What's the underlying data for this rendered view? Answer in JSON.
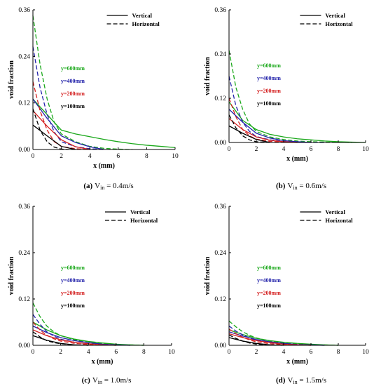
{
  "chart_data": [
    {
      "type": "line",
      "caption_letter": "(a)",
      "caption_text": "V",
      "caption_sub": "in",
      "caption_value": " = 0.4m/s",
      "xlabel": "x (mm)",
      "ylabel": "void fraction",
      "xlim": [
        0,
        10
      ],
      "ylim": [
        0,
        0.36
      ],
      "xticks": [
        "0",
        "2",
        "4",
        "6",
        "8",
        "10"
      ],
      "yticks": [
        "0.00",
        "0.12",
        "0.24",
        "0.36"
      ],
      "legend": [
        "Vertical",
        "Horizontal"
      ],
      "level_labels": [
        {
          "text": "y=600mm",
          "color": "#1aa81a"
        },
        {
          "text": "y=400mm",
          "color": "#2222aa"
        },
        {
          "text": "y=200mm",
          "color": "#d42020"
        },
        {
          "text": "y=100mm",
          "color": "#000000"
        }
      ],
      "series": [
        {
          "style": "solid",
          "color": "#1aa81a",
          "x": [
            0,
            1,
            2,
            3,
            4,
            5,
            6,
            7,
            8,
            9,
            10
          ],
          "y": [
            0.13,
            0.09,
            0.05,
            0.04,
            0.033,
            0.026,
            0.02,
            0.015,
            0.011,
            0.008,
            0.005
          ]
        },
        {
          "style": "dashed",
          "color": "#1aa81a",
          "x": [
            0,
            0.5,
            1,
            1.5,
            2,
            3,
            4,
            5,
            6,
            7
          ],
          "y": [
            0.345,
            0.22,
            0.13,
            0.07,
            0.04,
            0.02,
            0.008,
            0.003,
            0.001,
            0
          ]
        },
        {
          "style": "solid",
          "color": "#2222aa",
          "x": [
            0,
            1,
            2,
            3,
            4,
            5
          ],
          "y": [
            0.13,
            0.08,
            0.035,
            0.018,
            0.007,
            0
          ]
        },
        {
          "style": "dashed",
          "color": "#2222aa",
          "x": [
            0,
            0.5,
            1,
            1.5,
            2,
            3,
            4,
            5
          ],
          "y": [
            0.265,
            0.16,
            0.09,
            0.045,
            0.02,
            0.007,
            0.002,
            0
          ]
        },
        {
          "style": "solid",
          "color": "#d42020",
          "x": [
            0,
            1,
            2,
            3,
            4
          ],
          "y": [
            0.1,
            0.06,
            0.025,
            0.007,
            0
          ]
        },
        {
          "style": "dashed",
          "color": "#d42020",
          "x": [
            0,
            0.5,
            1,
            1.5,
            2,
            3,
            4
          ],
          "y": [
            0.175,
            0.1,
            0.05,
            0.02,
            0.008,
            0.002,
            0
          ]
        },
        {
          "style": "solid",
          "color": "#000000",
          "x": [
            0,
            1,
            2,
            3
          ],
          "y": [
            0.063,
            0.035,
            0.008,
            0
          ]
        },
        {
          "style": "dashed",
          "color": "#000000",
          "x": [
            0,
            0.5,
            1,
            1.5,
            2,
            2.5
          ],
          "y": [
            0.105,
            0.05,
            0.02,
            0.006,
            0.001,
            0
          ]
        }
      ]
    },
    {
      "type": "line",
      "caption_letter": "(b)",
      "caption_text": "V",
      "caption_sub": "in",
      "caption_value": " = 0.6m/s",
      "xlabel": "x (mm)",
      "ylabel": "void fraction",
      "xlim": [
        0,
        10
      ],
      "ylim": [
        0,
        0.36
      ],
      "xticks": [
        "0",
        "2",
        "4",
        "6",
        "8",
        "10"
      ],
      "yticks": [
        "0.00",
        "0.12",
        "0.24",
        "0.36"
      ],
      "legend": [
        "Vertical",
        "Horizontal"
      ],
      "level_labels": [
        {
          "text": "y=600mm",
          "color": "#1aa81a"
        },
        {
          "text": "y=400mm",
          "color": "#2222aa"
        },
        {
          "text": "y=200mm",
          "color": "#d42020"
        },
        {
          "text": "y=100mm",
          "color": "#000000"
        }
      ],
      "series": [
        {
          "style": "solid",
          "color": "#1aa81a",
          "x": [
            0,
            1,
            2,
            3,
            4,
            5,
            6,
            7,
            8,
            9,
            10
          ],
          "y": [
            0.11,
            0.06,
            0.035,
            0.022,
            0.015,
            0.01,
            0.007,
            0.004,
            0.002,
            0.001,
            0
          ]
        },
        {
          "style": "dashed",
          "color": "#1aa81a",
          "x": [
            0,
            0.5,
            1,
            1.5,
            2,
            3,
            4,
            5,
            6,
            7,
            8,
            9
          ],
          "y": [
            0.25,
            0.15,
            0.09,
            0.05,
            0.03,
            0.015,
            0.008,
            0.004,
            0.002,
            0.001,
            0.0005,
            0
          ]
        },
        {
          "style": "solid",
          "color": "#2222aa",
          "x": [
            0,
            1,
            2,
            3,
            4,
            5,
            6
          ],
          "y": [
            0.09,
            0.055,
            0.025,
            0.012,
            0.005,
            0.002,
            0
          ]
        },
        {
          "style": "dashed",
          "color": "#2222aa",
          "x": [
            0,
            0.5,
            1,
            1.5,
            2,
            3,
            4,
            5,
            6,
            7
          ],
          "y": [
            0.18,
            0.1,
            0.055,
            0.03,
            0.016,
            0.007,
            0.003,
            0.001,
            0.0005,
            0
          ]
        },
        {
          "style": "solid",
          "color": "#d42020",
          "x": [
            0,
            1,
            2,
            3,
            4,
            5
          ],
          "y": [
            0.065,
            0.035,
            0.015,
            0.006,
            0.002,
            0
          ]
        },
        {
          "style": "dashed",
          "color": "#d42020",
          "x": [
            0,
            0.5,
            1,
            1.5,
            2,
            3,
            4,
            5
          ],
          "y": [
            0.12,
            0.07,
            0.035,
            0.018,
            0.009,
            0.003,
            0.001,
            0
          ]
        },
        {
          "style": "solid",
          "color": "#000000",
          "x": [
            0,
            1,
            2,
            3
          ],
          "y": [
            0.045,
            0.025,
            0.008,
            0
          ]
        },
        {
          "style": "dashed",
          "color": "#000000",
          "x": [
            0,
            0.5,
            1,
            1.5,
            2,
            3
          ],
          "y": [
            0.075,
            0.04,
            0.018,
            0.007,
            0.002,
            0
          ]
        }
      ]
    },
    {
      "type": "line",
      "caption_letter": "(c)",
      "caption_text": "V",
      "caption_sub": "in",
      "caption_value": " = 1.0m/s",
      "xlabel": "x (mm)",
      "ylabel": "void fraction",
      "xlim": [
        0,
        10
      ],
      "ylim": [
        0,
        0.36
      ],
      "xticks": [
        "0",
        "2",
        "4",
        "6",
        "8",
        "10"
      ],
      "yticks": [
        "0.00",
        "0.12",
        "0.24",
        "0.36"
      ],
      "legend": [
        "Vertical",
        "Horizontal"
      ],
      "level_labels": [
        {
          "text": "y=600mm",
          "color": "#1aa81a"
        },
        {
          "text": "y=400mm",
          "color": "#2222aa"
        },
        {
          "text": "y=200mm",
          "color": "#d42020"
        },
        {
          "text": "y=100mm",
          "color": "#000000"
        }
      ],
      "series": [
        {
          "style": "solid",
          "color": "#1aa81a",
          "x": [
            0,
            1,
            2,
            3,
            4,
            5,
            6,
            7,
            8
          ],
          "y": [
            0.06,
            0.04,
            0.025,
            0.016,
            0.01,
            0.006,
            0.003,
            0.001,
            0
          ]
        },
        {
          "style": "dashed",
          "color": "#1aa81a",
          "x": [
            0,
            0.5,
            1,
            1.5,
            2,
            3,
            4,
            5,
            6,
            7,
            8
          ],
          "y": [
            0.11,
            0.075,
            0.05,
            0.035,
            0.025,
            0.014,
            0.008,
            0.004,
            0.002,
            0.001,
            0
          ]
        },
        {
          "style": "solid",
          "color": "#2222aa",
          "x": [
            0,
            1,
            2,
            3,
            4,
            5,
            6,
            7
          ],
          "y": [
            0.05,
            0.033,
            0.02,
            0.012,
            0.007,
            0.003,
            0.001,
            0
          ]
        },
        {
          "style": "dashed",
          "color": "#2222aa",
          "x": [
            0,
            0.5,
            1,
            1.5,
            2,
            3,
            4,
            5,
            6,
            7
          ],
          "y": [
            0.08,
            0.055,
            0.035,
            0.024,
            0.016,
            0.008,
            0.004,
            0.002,
            0.001,
            0
          ]
        },
        {
          "style": "solid",
          "color": "#d42020",
          "x": [
            0,
            1,
            2,
            3,
            4,
            5,
            6
          ],
          "y": [
            0.04,
            0.025,
            0.014,
            0.008,
            0.004,
            0.001,
            0
          ]
        },
        {
          "style": "dashed",
          "color": "#d42020",
          "x": [
            0,
            0.5,
            1,
            1.5,
            2,
            3,
            4,
            5,
            6
          ],
          "y": [
            0.06,
            0.04,
            0.026,
            0.017,
            0.011,
            0.005,
            0.002,
            0.001,
            0
          ]
        },
        {
          "style": "solid",
          "color": "#000000",
          "x": [
            0,
            1,
            2,
            3,
            4
          ],
          "y": [
            0.025,
            0.013,
            0.005,
            0.001,
            0
          ]
        },
        {
          "style": "dashed",
          "color": "#000000",
          "x": [
            0,
            0.5,
            1,
            1.5,
            2,
            3,
            4
          ],
          "y": [
            0.035,
            0.022,
            0.012,
            0.007,
            0.004,
            0.001,
            0
          ]
        }
      ]
    },
    {
      "type": "line",
      "caption_letter": "(d)",
      "caption_text": "V",
      "caption_sub": "in",
      "caption_value": " = 1.5m/s",
      "xlabel": "x (mm)",
      "ylabel": "void fraction",
      "xlim": [
        0,
        10
      ],
      "ylim": [
        0,
        0.36
      ],
      "xticks": [
        "0",
        "2",
        "4",
        "6",
        "8",
        "10"
      ],
      "yticks": [
        "0.00",
        "0.12",
        "0.24",
        "0.36"
      ],
      "legend": [
        "Vertical",
        "Horizontal"
      ],
      "level_labels": [
        {
          "text": "y=600mm",
          "color": "#1aa81a"
        },
        {
          "text": "y=400mm",
          "color": "#2222aa"
        },
        {
          "text": "y=200mm",
          "color": "#d42020"
        },
        {
          "text": "y=100mm",
          "color": "#000000"
        }
      ],
      "series": [
        {
          "style": "solid",
          "color": "#1aa81a",
          "x": [
            0,
            1,
            2,
            3,
            4,
            5,
            6,
            7,
            8
          ],
          "y": [
            0.04,
            0.028,
            0.018,
            0.012,
            0.008,
            0.005,
            0.003,
            0.001,
            0
          ]
        },
        {
          "style": "dashed",
          "color": "#1aa81a",
          "x": [
            0,
            0.5,
            1,
            1.5,
            2,
            3,
            4,
            5,
            6,
            7,
            8
          ],
          "y": [
            0.063,
            0.048,
            0.035,
            0.026,
            0.019,
            0.011,
            0.006,
            0.003,
            0.002,
            0.001,
            0
          ]
        },
        {
          "style": "solid",
          "color": "#2222aa",
          "x": [
            0,
            1,
            2,
            3,
            4,
            5,
            6,
            7
          ],
          "y": [
            0.035,
            0.024,
            0.015,
            0.009,
            0.005,
            0.002,
            0.001,
            0
          ]
        },
        {
          "style": "dashed",
          "color": "#2222aa",
          "x": [
            0,
            0.5,
            1,
            1.5,
            2,
            3,
            4,
            5,
            6,
            7
          ],
          "y": [
            0.05,
            0.037,
            0.027,
            0.019,
            0.013,
            0.007,
            0.003,
            0.001,
            0.0005,
            0
          ]
        },
        {
          "style": "solid",
          "color": "#d42020",
          "x": [
            0,
            1,
            2,
            3,
            4,
            5,
            6
          ],
          "y": [
            0.03,
            0.02,
            0.012,
            0.007,
            0.003,
            0.001,
            0
          ]
        },
        {
          "style": "dashed",
          "color": "#d42020",
          "x": [
            0,
            0.5,
            1,
            1.5,
            2,
            3,
            4,
            5,
            6
          ],
          "y": [
            0.042,
            0.03,
            0.021,
            0.014,
            0.009,
            0.004,
            0.002,
            0.001,
            0
          ]
        },
        {
          "style": "solid",
          "color": "#000000",
          "x": [
            0,
            1,
            2,
            3,
            4
          ],
          "y": [
            0.02,
            0.011,
            0.005,
            0.001,
            0
          ]
        },
        {
          "style": "dashed",
          "color": "#000000",
          "x": [
            0,
            0.5,
            1,
            1.5,
            2,
            3,
            4
          ],
          "y": [
            0.027,
            0.018,
            0.011,
            0.006,
            0.003,
            0.001,
            0
          ]
        }
      ]
    }
  ]
}
